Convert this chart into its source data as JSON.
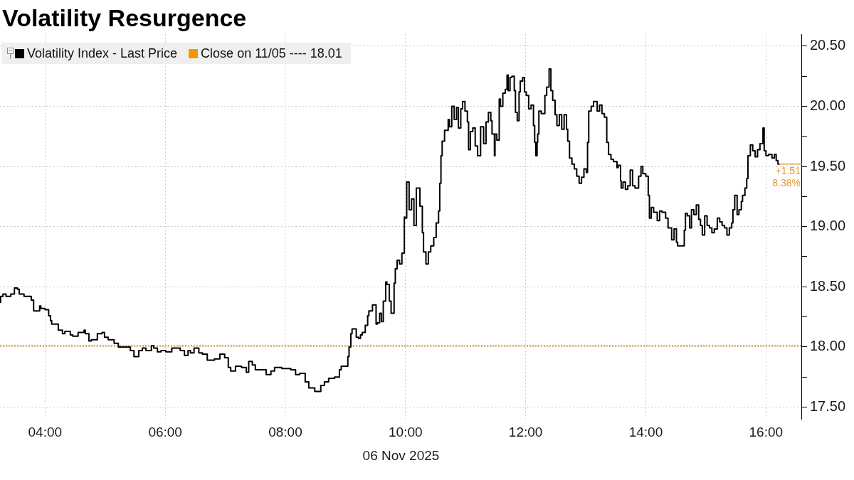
{
  "chart_data": {
    "type": "step",
    "title": "Volatility Resurgence",
    "xlabel": "06 Nov 2025",
    "x": [
      3.26,
      3.3,
      3.35,
      3.43,
      3.49,
      3.54,
      3.57,
      3.65,
      3.77,
      3.81,
      3.84,
      3.91,
      3.93,
      4.0,
      4.06,
      4.09,
      4.11,
      4.22,
      4.29,
      4.33,
      4.42,
      4.46,
      4.55,
      4.65,
      4.67,
      4.73,
      4.77,
      4.87,
      4.95,
      4.99,
      5.05,
      5.15,
      5.22,
      5.3,
      5.42,
      5.48,
      5.56,
      5.62,
      5.68,
      5.77,
      5.81,
      5.87,
      5.93,
      6.01,
      6.11,
      6.17,
      6.25,
      6.32,
      6.38,
      6.42,
      6.48,
      6.56,
      6.62,
      6.7,
      6.74,
      6.82,
      6.91,
      6.99,
      7.05,
      7.09,
      7.17,
      7.27,
      7.35,
      7.39,
      7.45,
      7.5,
      7.58,
      7.68,
      7.76,
      7.82,
      7.94,
      8.02,
      8.09,
      8.17,
      8.24,
      8.33,
      8.39,
      8.49,
      8.59,
      8.65,
      8.72,
      8.82,
      8.9,
      8.93,
      8.98,
      9.04,
      9.06,
      9.09,
      9.11,
      9.14,
      9.18,
      9.22,
      9.25,
      9.28,
      9.33,
      9.37,
      9.39,
      9.45,
      9.51,
      9.53,
      9.57,
      9.6,
      9.63,
      9.67,
      9.69,
      9.73,
      9.76,
      9.81,
      9.83,
      9.86,
      9.9,
      9.94,
      9.98,
      9.99,
      10.02,
      10.06,
      10.1,
      10.14,
      10.18,
      10.24,
      10.28,
      10.3,
      10.34,
      10.38,
      10.42,
      10.47,
      10.51,
      10.55,
      10.57,
      10.59,
      10.61,
      10.65,
      10.71,
      10.73,
      10.77,
      10.81,
      10.85,
      10.88,
      10.92,
      10.95,
      10.99,
      11.03,
      11.05,
      11.08,
      11.12,
      11.16,
      11.2,
      11.25,
      11.3,
      11.34,
      11.38,
      11.42,
      11.44,
      11.48,
      11.49,
      11.52,
      11.56,
      11.58,
      11.62,
      11.66,
      11.69,
      11.71,
      11.74,
      11.77,
      11.81,
      11.83,
      11.86,
      11.89,
      11.91,
      11.95,
      11.98,
      12.01,
      12.05,
      12.09,
      12.13,
      12.15,
      12.17,
      12.19,
      12.2,
      12.22,
      12.26,
      12.32,
      12.35,
      12.39,
      12.42,
      12.45,
      12.49,
      12.52,
      12.56,
      12.6,
      12.64,
      12.68,
      12.7,
      12.73,
      12.77,
      12.81,
      12.85,
      12.89,
      12.93,
      12.97,
      13.01,
      13.03,
      13.05,
      13.09,
      13.13,
      13.19,
      13.23,
      13.27,
      13.31,
      13.35,
      13.38,
      13.42,
      13.46,
      13.52,
      13.54,
      13.58,
      13.59,
      13.62,
      13.66,
      13.7,
      13.74,
      13.78,
      13.82,
      13.88,
      13.92,
      13.95,
      14.0,
      14.04,
      14.06,
      14.09,
      14.13,
      14.19,
      14.23,
      14.27,
      14.33,
      14.37,
      14.43,
      14.47,
      14.51,
      14.53,
      14.58,
      14.64,
      14.66,
      14.69,
      14.73,
      14.76,
      14.8,
      14.84,
      14.88,
      14.91,
      14.94,
      14.98,
      15.02,
      15.06,
      15.1,
      15.14,
      15.19,
      15.23,
      15.27,
      15.31,
      15.35,
      15.39,
      15.43,
      15.45,
      15.48,
      15.52,
      15.55,
      15.59,
      15.61,
      15.65,
      15.68,
      15.7,
      15.74,
      15.78,
      15.82,
      15.86,
      15.9,
      15.95,
      15.97,
      16.0,
      16.04,
      16.1,
      16.14,
      16.17,
      16.2,
      16.22
    ],
    "series": [
      {
        "name": "Volatility Index - Last Price",
        "color": "#000000",
        "values": [
          18.37,
          18.42,
          18.44,
          18.42,
          18.44,
          18.49,
          18.48,
          18.44,
          18.42,
          18.39,
          18.3,
          18.3,
          18.34,
          18.32,
          18.31,
          18.26,
          18.22,
          18.19,
          18.14,
          18.11,
          18.13,
          18.1,
          18.09,
          18.12,
          18.14,
          18.11,
          18.05,
          18.06,
          18.11,
          18.12,
          18.08,
          18.06,
          18.03,
          18.0,
          18.0,
          17.97,
          17.92,
          17.97,
          17.99,
          17.97,
          18.01,
          17.99,
          17.96,
          17.97,
          17.96,
          17.99,
          17.99,
          17.97,
          17.93,
          17.97,
          17.95,
          17.99,
          17.95,
          17.94,
          17.89,
          17.89,
          17.9,
          17.94,
          17.91,
          17.83,
          17.8,
          17.84,
          17.83,
          17.79,
          17.88,
          17.85,
          17.81,
          17.81,
          17.77,
          17.8,
          17.83,
          17.82,
          17.82,
          17.81,
          17.77,
          17.78,
          17.71,
          17.66,
          17.63,
          17.68,
          17.71,
          17.74,
          17.75,
          17.81,
          17.84,
          17.84,
          17.92,
          18.0,
          18.11,
          18.15,
          18.15,
          18.08,
          18.07,
          18.1,
          18.12,
          18.18,
          18.26,
          18.3,
          18.35,
          18.19,
          18.2,
          18.28,
          18.21,
          18.38,
          18.54,
          18.52,
          18.38,
          18.28,
          18.53,
          18.65,
          18.72,
          18.69,
          18.78,
          19.08,
          19.07,
          19.37,
          19.14,
          19.23,
          19.01,
          19.32,
          19.17,
          18.95,
          18.79,
          18.69,
          18.79,
          18.84,
          18.91,
          19.03,
          19.13,
          19.36,
          19.59,
          19.71,
          19.8,
          19.89,
          19.83,
          20.0,
          19.89,
          19.99,
          19.82,
          19.98,
          20.04,
          19.96,
          19.87,
          19.64,
          19.79,
          19.82,
          19.67,
          19.59,
          19.83,
          19.69,
          19.87,
          19.95,
          19.88,
          19.77,
          19.59,
          19.77,
          19.72,
          20.06,
          20.0,
          20.11,
          20.14,
          20.26,
          20.13,
          20.24,
          20.25,
          20.13,
          19.95,
          19.88,
          20.12,
          20.21,
          20.24,
          20.12,
          20.09,
          19.98,
          20.01,
          19.84,
          19.7,
          19.59,
          19.7,
          19.77,
          19.96,
          19.94,
          20.09,
          20.16,
          20.31,
          20.13,
          20.05,
          19.93,
          19.84,
          19.93,
          19.81,
          19.93,
          19.81,
          19.71,
          19.57,
          19.52,
          19.48,
          19.42,
          19.36,
          19.41,
          19.48,
          19.45,
          19.7,
          19.96,
          20.0,
          20.04,
          19.96,
          20.01,
          19.94,
          19.91,
          19.7,
          19.6,
          19.56,
          19.54,
          19.49,
          19.51,
          19.38,
          19.32,
          19.37,
          19.31,
          19.34,
          19.47,
          19.34,
          19.32,
          19.42,
          19.5,
          19.44,
          19.42,
          19.26,
          19.07,
          19.16,
          19.12,
          19.05,
          19.13,
          19.12,
          19.07,
          18.99,
          18.89,
          18.98,
          18.87,
          18.84,
          18.84,
          18.97,
          19.11,
          19.09,
          18.99,
          19.14,
          19.1,
          19.18,
          19.06,
          19.01,
          18.93,
          19.09,
          19.01,
          18.99,
          18.95,
          18.98,
          19.07,
          19.04,
          19.01,
          18.99,
          18.93,
          18.99,
          19.03,
          19.14,
          19.26,
          19.1,
          19.14,
          19.21,
          19.26,
          19.32,
          19.4,
          19.59,
          19.68,
          19.63,
          19.58,
          19.64,
          19.69,
          19.82,
          19.63,
          19.59,
          19.6,
          19.57,
          19.6,
          19.55,
          19.52
        ]
      }
    ],
    "xlim": [
      3.25,
      16.6
    ],
    "xticks": [
      {
        "value": 4,
        "label": "04:00"
      },
      {
        "value": 6,
        "label": "06:00"
      },
      {
        "value": 8,
        "label": "08:00"
      },
      {
        "value": 10,
        "label": "10:00"
      },
      {
        "value": 12,
        "label": "12:00"
      },
      {
        "value": 14,
        "label": "14:00"
      },
      {
        "value": 16,
        "label": "16:00"
      }
    ],
    "ylim": [
      17.4,
      20.6
    ],
    "yticks": [
      {
        "value": 17.5,
        "label": "17.50"
      },
      {
        "value": 17.75,
        "label": null
      },
      {
        "value": 18,
        "label": "18.00"
      },
      {
        "value": 18.25,
        "label": null
      },
      {
        "value": 18.5,
        "label": "18.50"
      },
      {
        "value": 18.75,
        "label": null
      },
      {
        "value": 19,
        "label": "19.00"
      },
      {
        "value": 19.25,
        "label": null
      },
      {
        "value": 19.5,
        "label": "19.50"
      },
      {
        "value": 19.75,
        "label": null
      },
      {
        "value": 20,
        "label": "20.00"
      },
      {
        "value": 20.25,
        "label": null
      },
      {
        "value": 20.5,
        "label": "20.50"
      }
    ],
    "ref_lines": [
      {
        "axis": "y",
        "value": 18.01,
        "label": "Close on 11/05 ---- 18.01",
        "color": "#f39800",
        "line_style": "dotted"
      }
    ],
    "annotations": [
      {
        "text": "+1.51",
        "x": 16.22,
        "y": 19.52
      },
      {
        "text": "8.38%",
        "x": 16.22,
        "y": 19.52
      }
    ],
    "grid": true,
    "legend": "top left",
    "marker": "none"
  }
}
